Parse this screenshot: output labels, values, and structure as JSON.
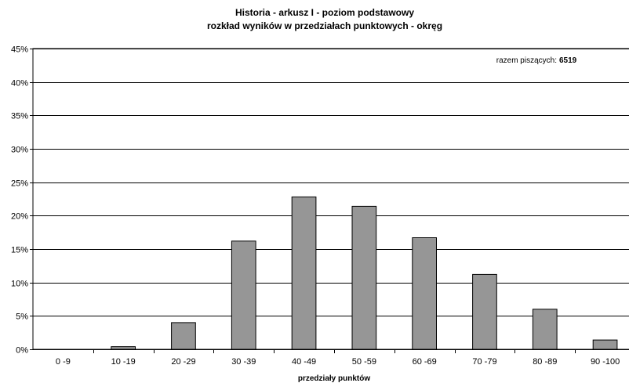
{
  "chart_data": {
    "type": "bar",
    "title": "Historia - arkusz I - poziom podstawowy",
    "subtitle": "rozkład wyników w przedziałach punktowych - okręg",
    "xlabel": "przedziały punktów",
    "ylabel": "",
    "categories": [
      "0 -9",
      "10 -19",
      "20 -29",
      "30 -39",
      "40 -49",
      "50 -59",
      "60 -69",
      "70 -79",
      "80 -89",
      "90 -100"
    ],
    "values": [
      0.0,
      0.4,
      4.0,
      16.2,
      22.8,
      21.4,
      16.7,
      11.2,
      6.0,
      1.4
    ],
    "ylim": [
      0,
      45
    ],
    "yticks": [
      0,
      5,
      10,
      15,
      20,
      25,
      30,
      35,
      40,
      45
    ],
    "ytick_suffix": "%",
    "grid": true,
    "bar_color": "#969696",
    "annotation": {
      "label": "razem piszących:",
      "value": "6519",
      "placement": "top-right"
    }
  }
}
